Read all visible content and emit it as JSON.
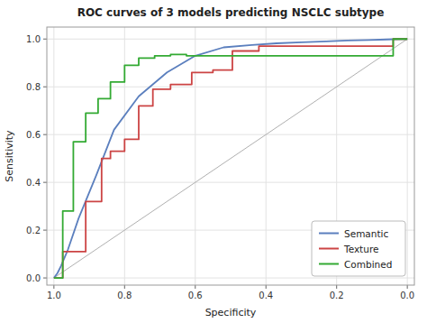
{
  "chart_data": {
    "type": "line",
    "title": "ROC curves of 3 models predicting NSCLC subtype",
    "xlabel": "Specificity",
    "ylabel": "Sensitivity",
    "xlim": [
      1.02,
      -0.02
    ],
    "ylim": [
      -0.03,
      1.05
    ],
    "xticks": [
      {
        "value": 1.0,
        "label": "1.0"
      },
      0.8,
      0.6,
      0.4,
      0.2,
      {
        "value": 0.0,
        "label": "0.0"
      }
    ],
    "yticks": [
      {
        "value": 0.0,
        "label": "0.0"
      },
      0.2,
      0.4,
      0.6,
      0.8,
      {
        "value": 1.0,
        "label": "1.0"
      }
    ],
    "grid": true,
    "legend": "lower right",
    "reference_line": {
      "color": "#b0b0b0",
      "x": [
        1.0,
        0.0
      ],
      "values": [
        0.0,
        1.0
      ]
    },
    "series": [
      {
        "name": "Semantic",
        "color": "#5b7fbe",
        "x": [
          1.0,
          0.99,
          0.98,
          0.96,
          0.93,
          0.88,
          0.83,
          0.76,
          0.68,
          0.6,
          0.52,
          0.44,
          0.37,
          0.3,
          0.23,
          0.17,
          0.11,
          0.06,
          0.02,
          0.0
        ],
        "values": [
          0.0,
          0.02,
          0.05,
          0.12,
          0.25,
          0.43,
          0.62,
          0.76,
          0.86,
          0.93,
          0.965,
          0.975,
          0.982,
          0.986,
          0.99,
          0.994,
          0.996,
          0.998,
          1.0,
          1.0
        ]
      },
      {
        "name": "Texture",
        "color": "#cc4444",
        "x": [
          1.0,
          0.975,
          0.975,
          0.91,
          0.91,
          0.865,
          0.865,
          0.84,
          0.84,
          0.8,
          0.8,
          0.76,
          0.76,
          0.72,
          0.72,
          0.67,
          0.67,
          0.61,
          0.61,
          0.55,
          0.55,
          0.495,
          0.495,
          0.42,
          0.42,
          0.04,
          0.04,
          0.0
        ],
        "values": [
          0.0,
          0.0,
          0.11,
          0.11,
          0.32,
          0.32,
          0.5,
          0.5,
          0.53,
          0.53,
          0.58,
          0.58,
          0.72,
          0.72,
          0.79,
          0.79,
          0.81,
          0.81,
          0.86,
          0.86,
          0.87,
          0.87,
          0.95,
          0.95,
          0.97,
          0.97,
          1.0,
          1.0
        ]
      },
      {
        "name": "Combined",
        "color": "#33aa33",
        "x": [
          1.0,
          0.975,
          0.975,
          0.945,
          0.945,
          0.91,
          0.91,
          0.875,
          0.875,
          0.84,
          0.84,
          0.8,
          0.8,
          0.76,
          0.76,
          0.715,
          0.715,
          0.67,
          0.67,
          0.625,
          0.625,
          0.04,
          0.04,
          0.0
        ],
        "values": [
          0.0,
          0.0,
          0.28,
          0.28,
          0.57,
          0.57,
          0.69,
          0.69,
          0.75,
          0.75,
          0.82,
          0.82,
          0.89,
          0.89,
          0.92,
          0.92,
          0.93,
          0.93,
          0.935,
          0.935,
          0.93,
          0.93,
          1.0,
          1.0
        ]
      }
    ]
  }
}
